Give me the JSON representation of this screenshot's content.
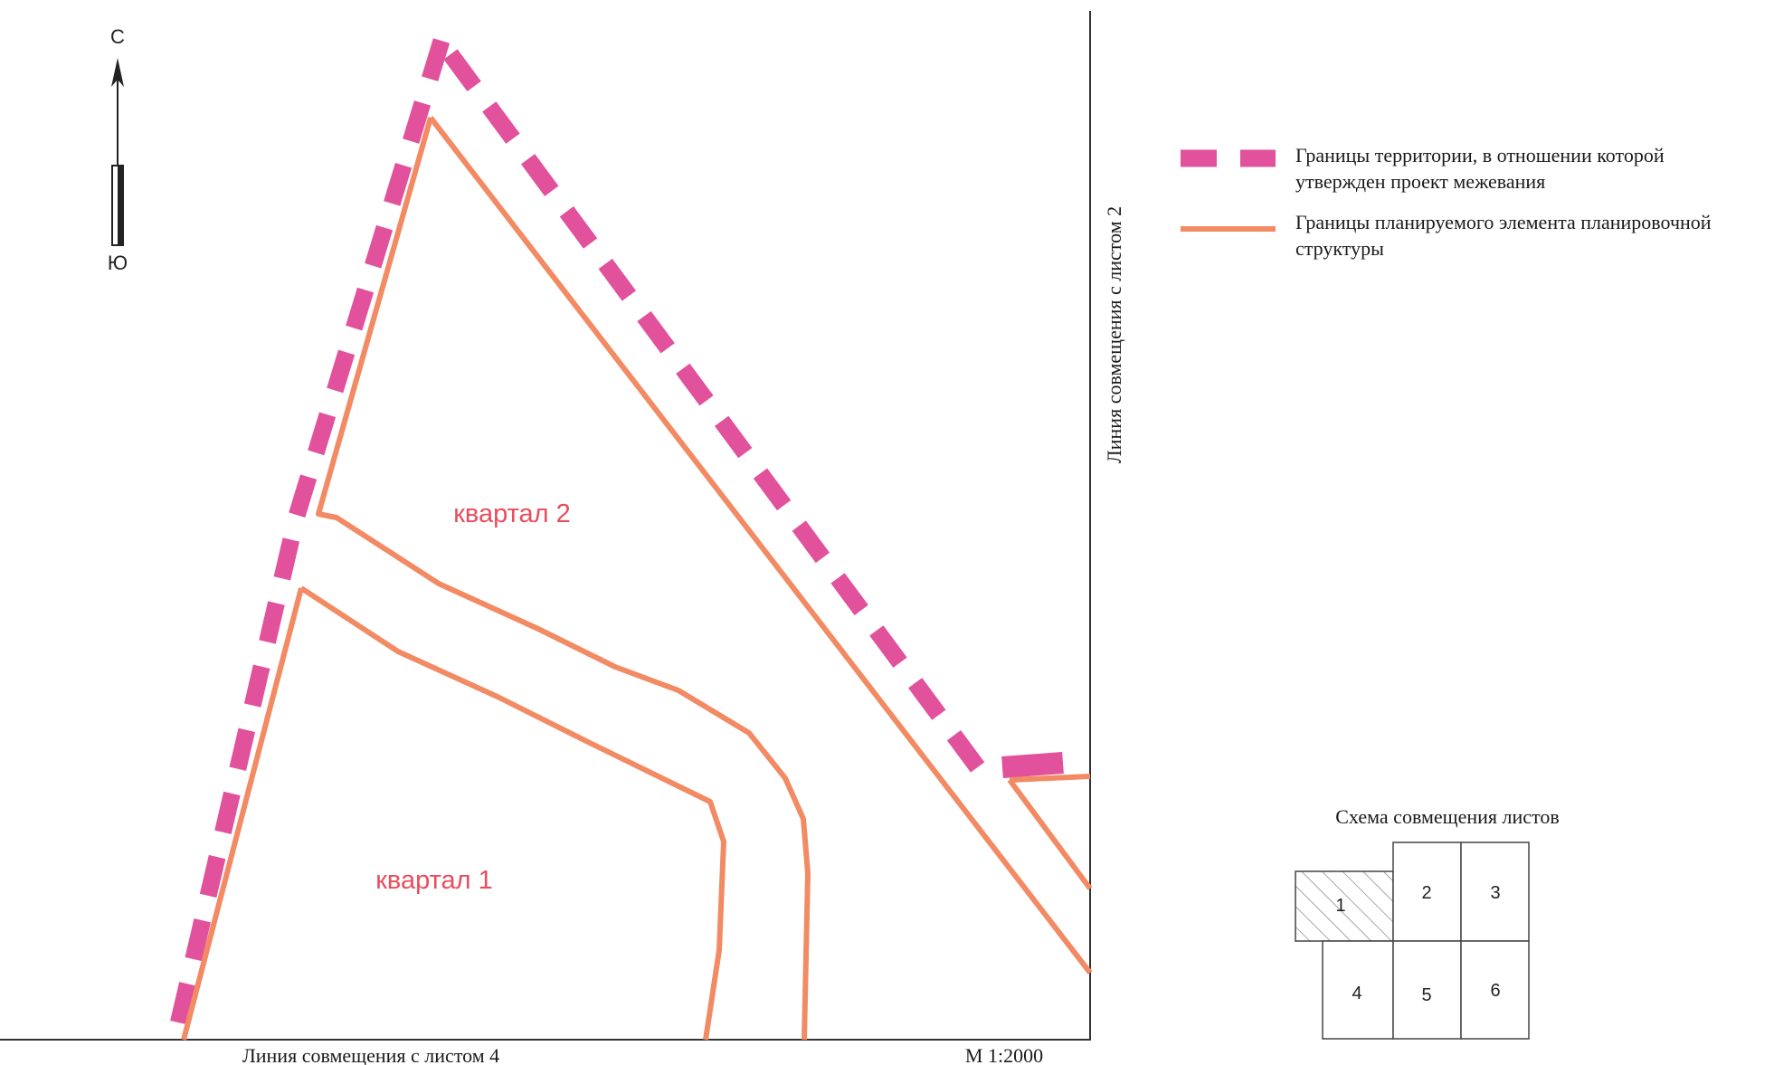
{
  "compass": {
    "north": "С",
    "south": "Ю",
    "icon": "north-arrow-icon"
  },
  "map": {
    "blocks": [
      {
        "label": "квартал 2"
      },
      {
        "label": "квартал 1"
      }
    ],
    "match_line_right": "Линия совмещения с листом 2",
    "match_line_bottom": "Линия совмещения с листом 4",
    "scale": "М 1:2000",
    "colors": {
      "territory": "#e2519c",
      "planning": "#f28a63",
      "block_label": "#ea4d5c",
      "frame": "#333333"
    }
  },
  "legend": {
    "items": [
      {
        "symbol": "dashed-magenta",
        "text_line1": "Границы территории, в отношении которой",
        "text_line2": "утвержден проект межевания"
      },
      {
        "symbol": "solid-orange",
        "text_line1": "Границы планируемого элемента планировочной",
        "text_line2": "структуры"
      }
    ]
  },
  "sheet_scheme": {
    "title": "Схема совмещения листов",
    "sheets": [
      "1",
      "2",
      "3",
      "4",
      "5",
      "6"
    ],
    "current_sheet": "1"
  }
}
